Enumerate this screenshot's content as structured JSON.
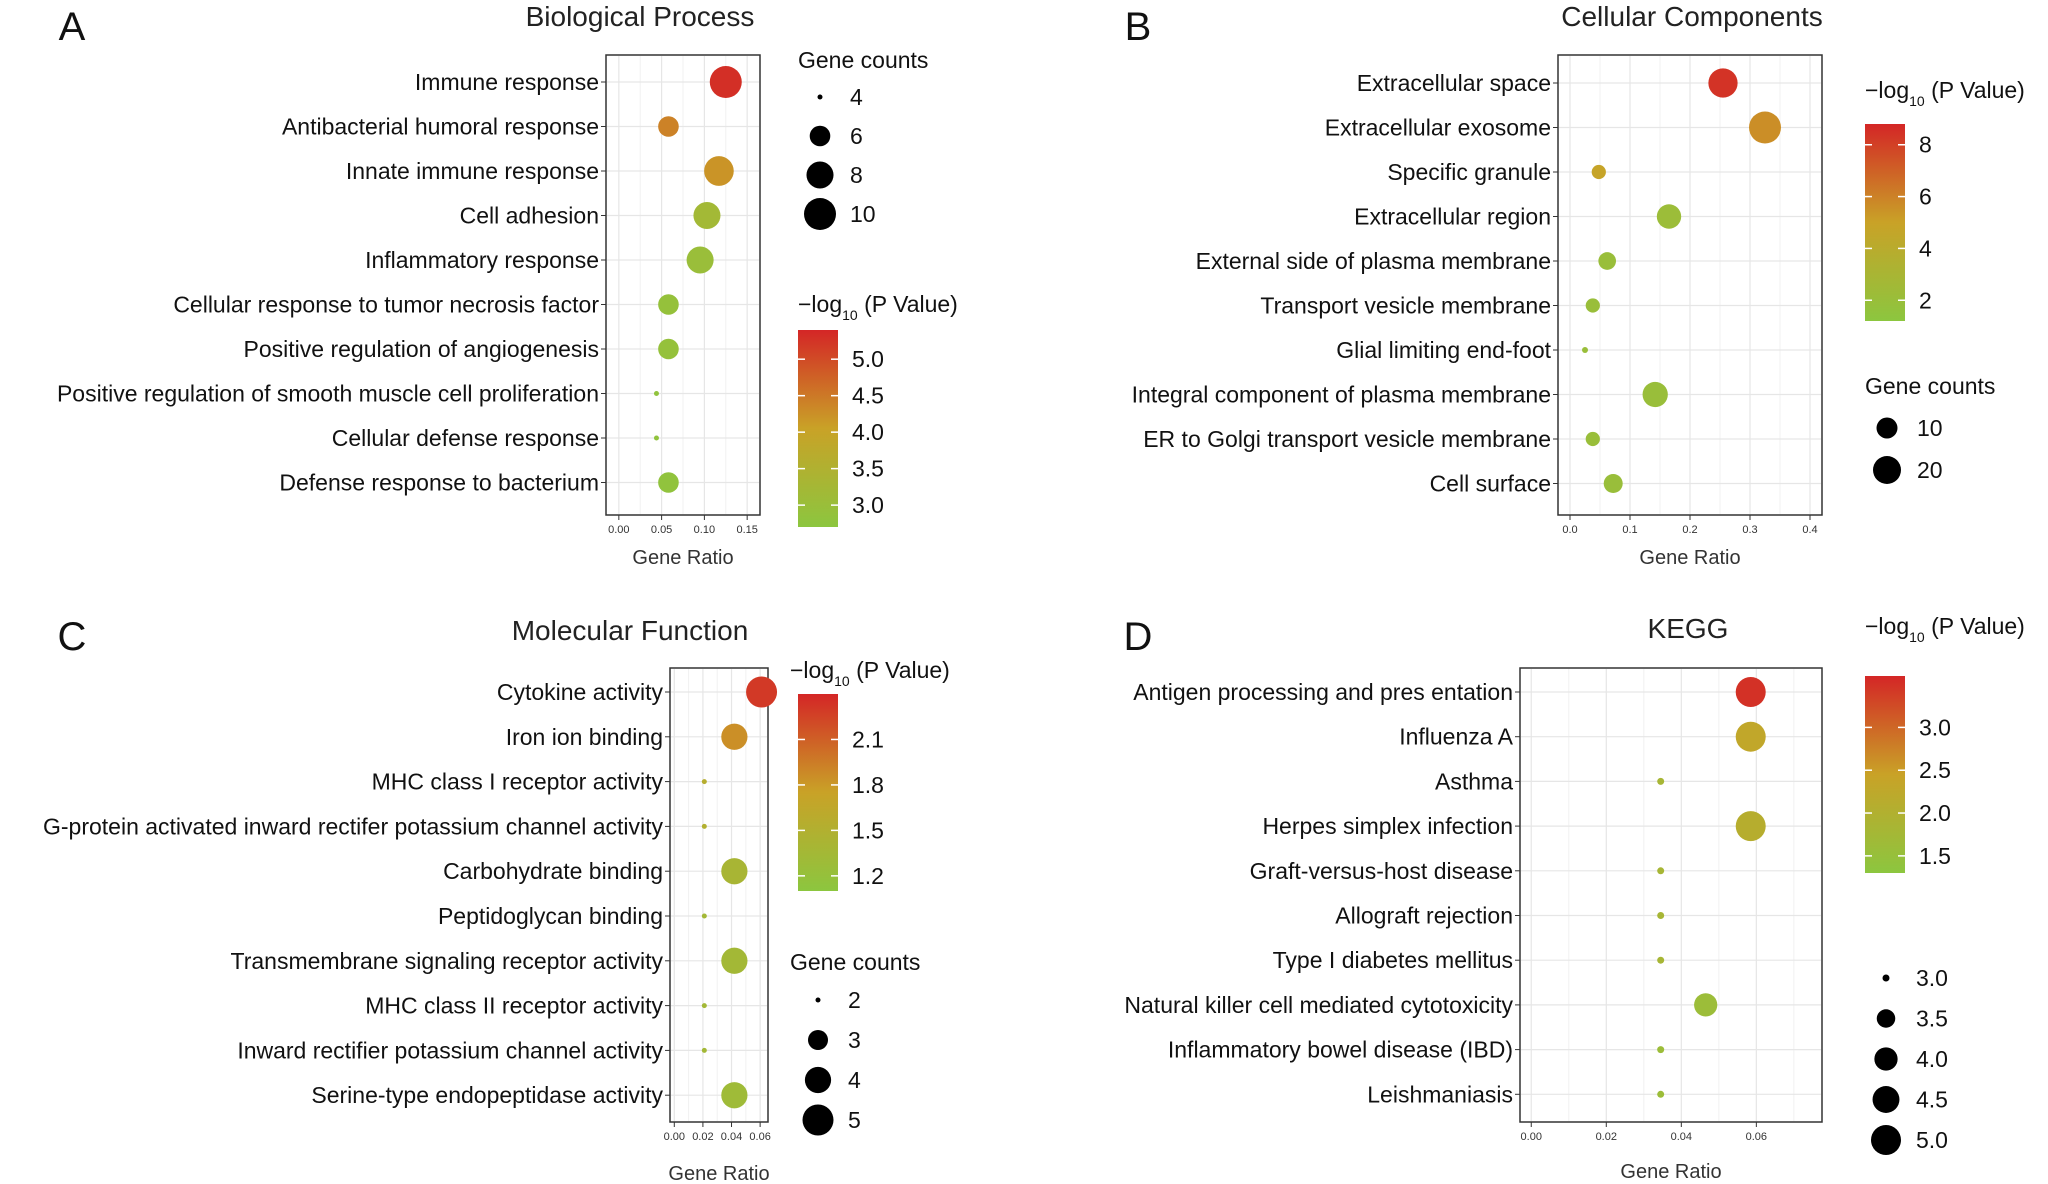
{
  "colors": {
    "low": "#8cc63f",
    "mid": "#c9a227",
    "high": "#d42626",
    "grid": "#e6e6e6",
    "axis": "#333333"
  },
  "chart_data": [
    {
      "panel": "A",
      "type": "scatter",
      "title": "Biological Process",
      "xlabel": "Gene Ratio",
      "ylabel": "",
      "xlim": [
        -0.015,
        0.165
      ],
      "xticks": [
        "0.00",
        "0.05",
        "0.10",
        "0.15"
      ],
      "categories": [
        "Immune response",
        "Antibacterial humoral response",
        "Innate immune response",
        "Cell adhesion",
        "Inflammatory response",
        "Cellular response to tumor necrosis factor",
        "Positive regulation of angiogenesis",
        "Positive regulation of smooth muscle cell proliferation",
        "Cellular defense response",
        "Defense response to bacterium"
      ],
      "x": [
        0.125,
        0.058,
        0.117,
        0.103,
        0.095,
        0.058,
        0.058,
        0.044,
        0.044,
        0.058
      ],
      "size": [
        10,
        6,
        9,
        8,
        8,
        6,
        6,
        4,
        4,
        6
      ],
      "color_value": [
        5.3,
        4.4,
        4.2,
        3.2,
        3.0,
        2.9,
        2.9,
        2.8,
        2.8,
        2.8
      ],
      "color_legend": {
        "title_prefix": "−log",
        "title_sub": "10",
        "title_suffix": " (P Value)",
        "ticks": [
          "5.0",
          "4.5",
          "4.0",
          "3.5",
          "3.0"
        ],
        "range": [
          2.7,
          5.4
        ]
      },
      "size_legend": {
        "title": "Gene counts",
        "items": [
          "4",
          "6",
          "8",
          "10"
        ]
      }
    },
    {
      "panel": "B",
      "type": "scatter",
      "title": "Cellular Components",
      "xlabel": "Gene Ratio",
      "ylabel": "",
      "xlim": [
        -0.02,
        0.42
      ],
      "xticks": [
        "0.0",
        "0.1",
        "0.2",
        "0.3",
        "0.4"
      ],
      "categories": [
        "Extracellular space",
        "Extracellular exosome",
        "Specific granule",
        "Extracellular region",
        "External side of plasma membrane",
        "Transport vesicle membrane",
        "Glial limiting end-foot",
        "Integral component of plasma membrane",
        "ER to Golgi transport vesicle membrane",
        "Cell surface"
      ],
      "x": [
        0.255,
        0.325,
        0.048,
        0.165,
        0.062,
        0.038,
        0.025,
        0.142,
        0.038,
        0.072
      ],
      "size": [
        18,
        22,
        4,
        12,
        6,
        4,
        2,
        13,
        4,
        7
      ],
      "color_value": [
        8.4,
        5.6,
        4.8,
        2.2,
        2.0,
        2.0,
        2.0,
        2.0,
        2.0,
        2.0
      ],
      "color_legend": {
        "title_prefix": "−log",
        "title_sub": "10",
        "title_suffix": " (P Value)",
        "ticks": [
          "8",
          "6",
          "4",
          "2"
        ],
        "range": [
          1.2,
          8.8
        ]
      },
      "size_legend": {
        "title": "Gene counts",
        "items": [
          "10",
          "20"
        ]
      }
    },
    {
      "panel": "C",
      "type": "scatter",
      "title": "Molecular Function",
      "xlabel": "Gene Ratio",
      "ylabel": "",
      "xlim": [
        -0.003,
        0.0655
      ],
      "xticks": [
        "0.00",
        "0.02",
        "0.04",
        "0.06"
      ],
      "categories": [
        "Cytokine activity",
        "Iron ion binding",
        "MHC class I receptor activity",
        "G-protein activated inward rectifer potassium channel activity",
        "Carbohydrate binding",
        "Peptidoglycan binding",
        "Transmembrane signaling receptor activity",
        "MHC class II receptor activity",
        "Inward rectifier potassium channel activity",
        "Serine-type endopeptidase activity"
      ],
      "x": [
        0.061,
        0.042,
        0.021,
        0.021,
        0.042,
        0.021,
        0.042,
        0.021,
        0.021,
        0.042
      ],
      "size": [
        5,
        4,
        2,
        2,
        4,
        2,
        4,
        2,
        2,
        4
      ],
      "color_value": [
        2.3,
        1.85,
        1.55,
        1.5,
        1.4,
        1.35,
        1.35,
        1.35,
        1.35,
        1.3
      ],
      "color_legend": {
        "title_prefix": "−log",
        "title_sub": "10",
        "title_suffix": " (P Value)",
        "ticks": [
          "2.1",
          "1.8",
          "1.5",
          "1.2"
        ],
        "range": [
          1.1,
          2.4
        ]
      },
      "size_legend": {
        "title": "Gene counts",
        "items": [
          "2",
          "3",
          "4",
          "5"
        ]
      }
    },
    {
      "panel": "D",
      "type": "scatter",
      "title": "KEGG",
      "xlabel": "Gene Ratio",
      "ylabel": "",
      "xlim": [
        -0.003,
        0.0775
      ],
      "xticks": [
        "0.00",
        "0.02",
        "0.04",
        "0.06"
      ],
      "categories": [
        "Antigen processing and pres entation",
        "Influenza A",
        "Asthma",
        "Herpes simplex infection",
        "Graft-versus-host disease",
        "Allograft rejection",
        "Type I diabetes mellitus",
        "Natural killer cell mediated cytotoxicity",
        "Inflammatory bowel disease (IBD)",
        "Leishmaniasis"
      ],
      "x": [
        0.0585,
        0.0585,
        0.0345,
        0.0585,
        0.0345,
        0.0345,
        0.0345,
        0.0465,
        0.0345,
        0.0345
      ],
      "size": [
        5,
        5,
        3,
        5,
        3,
        3,
        3,
        4,
        3,
        3
      ],
      "color_value": [
        3.5,
        2.3,
        1.8,
        2.1,
        1.8,
        1.8,
        1.8,
        1.6,
        1.6,
        1.6
      ],
      "color_legend": {
        "title_prefix": "−log",
        "title_sub": "10",
        "title_suffix": " (P Value)",
        "ticks": [
          "3.0",
          "2.5",
          "2.0",
          "1.5"
        ],
        "range": [
          1.3,
          3.6
        ]
      },
      "size_legend": {
        "title": "",
        "items": [
          "3.0",
          "3.5",
          "4.0",
          "4.5",
          "5.0"
        ]
      }
    }
  ]
}
